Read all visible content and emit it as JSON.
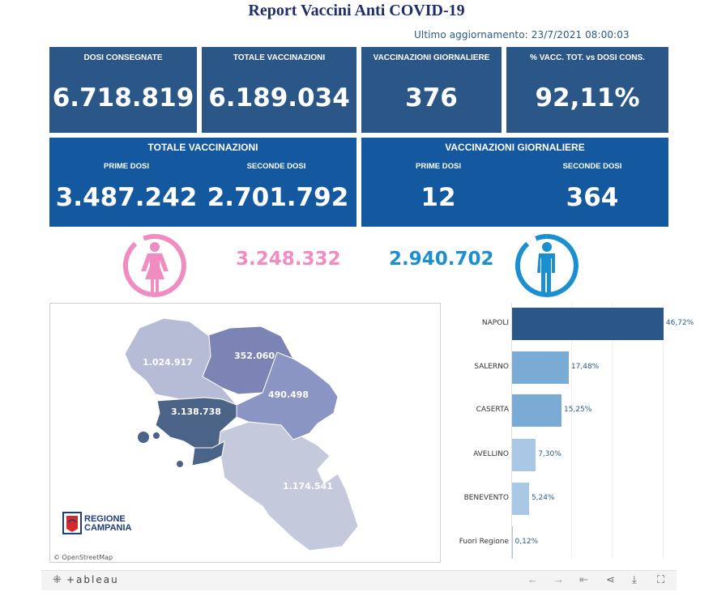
{
  "title": "Report Vaccini Anti COVID-19",
  "updated": "Ultimo aggiornamento: 23/7/2021  08:00:03",
  "kpis": [
    {
      "label": "DOSI CONSEGNATE",
      "value": "6.718.819"
    },
    {
      "label": "TOTALE VACCINAZIONI",
      "value": "6.189.034"
    },
    {
      "label": "VACCINAZIONI GIORNALIERE",
      "value": "376"
    },
    {
      "label": "% VACC. TOT. vs DOSI CONS.",
      "value": "92,11%"
    }
  ],
  "totale": {
    "header": "TOTALE VACCINAZIONI",
    "prime_label": "PRIME DOSI",
    "prime_value": "3.487.242",
    "seconde_label": "SECONDE DOSI",
    "seconde_value": "2.701.792"
  },
  "giornaliere": {
    "header": "VACCINAZIONI GIORNALIERE",
    "prime_label": "PRIME DOSI",
    "prime_value": "12",
    "seconde_label": "SECONDE DOSI",
    "seconde_value": "364"
  },
  "gender": {
    "female_value": "3.248.332",
    "female_color": "#f08cc0",
    "male_value": "2.940.702",
    "male_color": "#1b8fd0"
  },
  "map": {
    "labels": {
      "caserta": "1.024.917",
      "benevento": "352.060",
      "avellino": "490.498",
      "napoli": "3.138.738",
      "salerno": "1.174.541"
    },
    "logo_line1": "REGIONE",
    "logo_line2": "CAMPANIA",
    "credit": "© OpenStreetMap"
  },
  "chart_data": {
    "type": "bar",
    "orientation": "horizontal",
    "categories": [
      "NAPOLI",
      "SALERNO",
      "CASERTA",
      "AVELLINO",
      "BENEVENTO",
      "Fuori Regione"
    ],
    "values": [
      46.72,
      17.48,
      15.25,
      7.3,
      5.24,
      0.12
    ],
    "labels": [
      "46,72%",
      "17,48%",
      "15,25%",
      "7,30%",
      "5,24%",
      "0,12%"
    ],
    "colors": [
      "#2a5788",
      "#7aabd4",
      "#7aabd4",
      "#a8c8e6",
      "#a8c8e6",
      "#a8c8e6"
    ],
    "xlim": [
      0,
      50
    ]
  },
  "toolbar": {
    "logo": "+ableau"
  }
}
